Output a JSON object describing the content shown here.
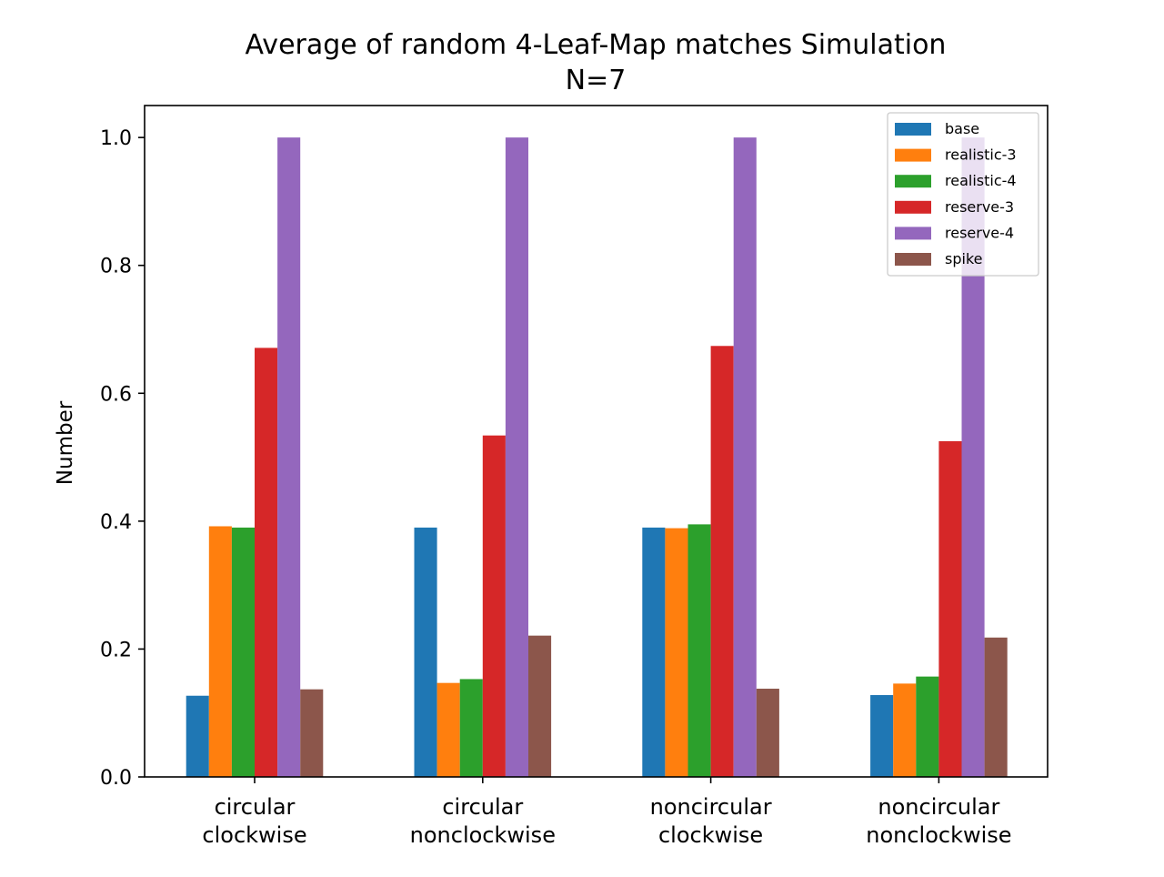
{
  "chart_data": {
    "type": "bar",
    "title": "Average of random 4-Leaf-Map matches Simulation",
    "subtitle": "N=7",
    "xlabel": "",
    "ylabel": "Number",
    "ylim": [
      0,
      1.05
    ],
    "yticks": [
      0.0,
      0.2,
      0.4,
      0.6,
      0.8,
      1.0
    ],
    "ytick_labels": [
      "0.0",
      "0.2",
      "0.4",
      "0.6",
      "0.8",
      "1.0"
    ],
    "categories": [
      [
        "circular",
        "clockwise"
      ],
      [
        "circular",
        "nonclockwise"
      ],
      [
        "noncircular",
        "clockwise"
      ],
      [
        "noncircular",
        "nonclockwise"
      ]
    ],
    "series": [
      {
        "name": "base",
        "color": "#1f77b4",
        "values": [
          0.127,
          0.39,
          0.39,
          0.128
        ]
      },
      {
        "name": "realistic-3",
        "color": "#ff7f0e",
        "values": [
          0.392,
          0.147,
          0.389,
          0.146
        ]
      },
      {
        "name": "realistic-4",
        "color": "#2ca02c",
        "values": [
          0.39,
          0.153,
          0.395,
          0.157
        ]
      },
      {
        "name": "reserve-3",
        "color": "#d62728",
        "values": [
          0.671,
          0.534,
          0.674,
          0.525
        ]
      },
      {
        "name": "reserve-4",
        "color": "#9467bd",
        "values": [
          1.0,
          1.0,
          1.0,
          1.0
        ]
      },
      {
        "name": "spike",
        "color": "#8c564b",
        "values": [
          0.137,
          0.221,
          0.138,
          0.218
        ]
      }
    ],
    "legend_position": "upper right",
    "grid": false
  }
}
